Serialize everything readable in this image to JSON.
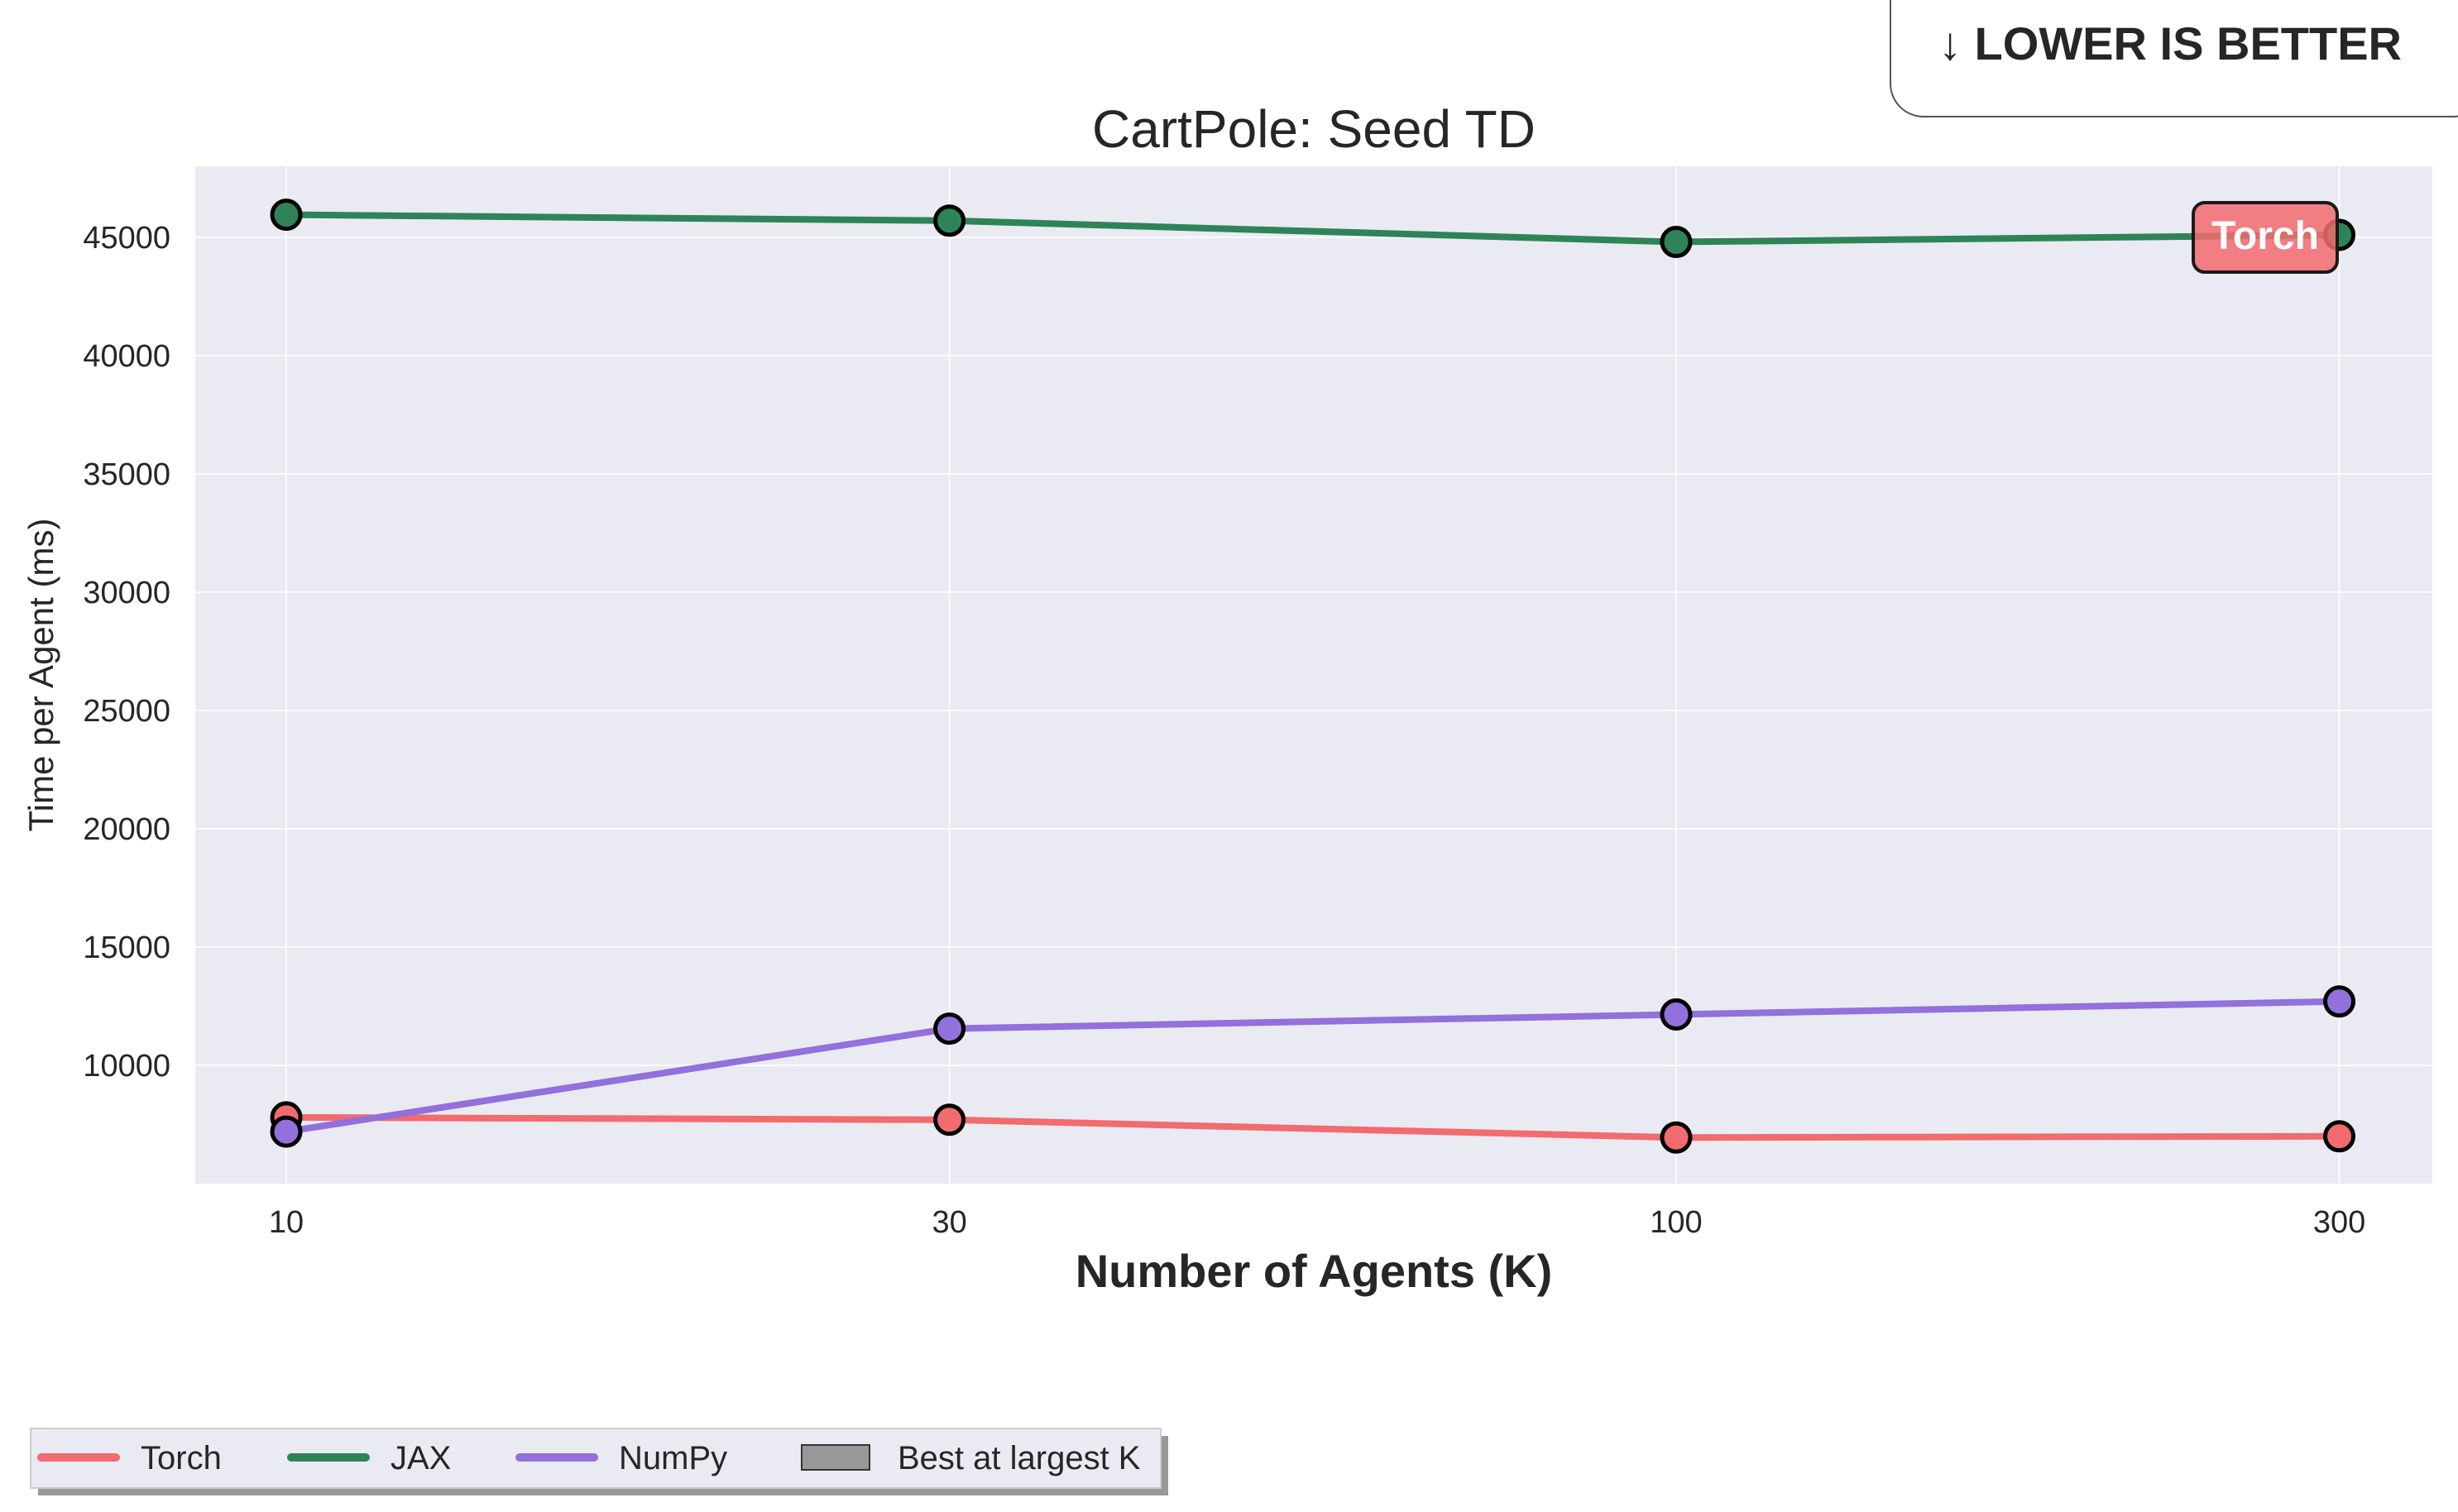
{
  "badge": {
    "text": "↓ LOWER IS BETTER"
  },
  "chart_data": {
    "type": "line",
    "title": "CartPole: Seed TD",
    "xlabel": "Number of Agents (K)",
    "ylabel": "Time per Agent (ms)",
    "x_scale": "log",
    "x": [
      10,
      30,
      100,
      300
    ],
    "x_tick_labels": [
      "10",
      "30",
      "100",
      "300"
    ],
    "xlim": [
      8.6,
      350
    ],
    "ylim": [
      5000,
      48000
    ],
    "y_ticks": [
      10000,
      15000,
      20000,
      25000,
      30000,
      35000,
      40000,
      45000
    ],
    "y_tick_labels": [
      "10000",
      "15000",
      "20000",
      "25000",
      "30000",
      "35000",
      "40000",
      "45000"
    ],
    "grid": true,
    "series": [
      {
        "name": "Torch",
        "color": "#f26b6f",
        "values": [
          7800,
          7700,
          6950,
          7000
        ]
      },
      {
        "name": "JAX",
        "color": "#2e8458",
        "values": [
          45950,
          45700,
          44800,
          45100
        ]
      },
      {
        "name": "NumPy",
        "color": "#9370db",
        "values": [
          7200,
          11550,
          12150,
          12700
        ]
      }
    ],
    "legend": {
      "placement": "bottom-left",
      "entries": [
        {
          "label": "Torch",
          "kind": "line",
          "color": "#f26b6f"
        },
        {
          "label": "JAX",
          "kind": "line",
          "color": "#2e8458"
        },
        {
          "label": "NumPy",
          "kind": "line",
          "color": "#9370db"
        },
        {
          "label": "Best at largest K",
          "kind": "patch",
          "color": "#999999"
        }
      ]
    },
    "annotation": {
      "text": "Torch",
      "x": 300,
      "y": 45100,
      "color": "#f26b6f"
    }
  }
}
